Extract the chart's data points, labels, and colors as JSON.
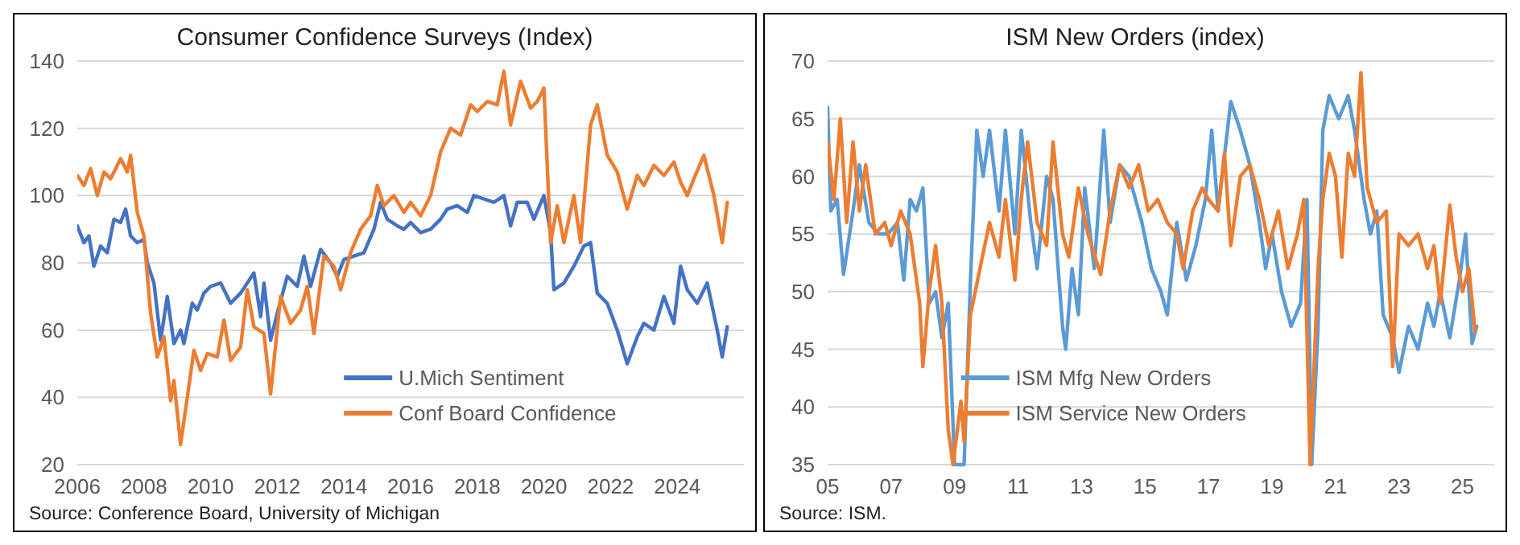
{
  "chart_data": [
    {
      "type": "line",
      "title": "Consumer Confidence Surveys (Index)",
      "xlim": [
        2006,
        2026
      ],
      "xticks": [
        2006,
        2008,
        2010,
        2012,
        2014,
        2016,
        2018,
        2020,
        2022,
        2024
      ],
      "ylim": [
        20,
        140
      ],
      "yticks": [
        20,
        40,
        60,
        80,
        100,
        120,
        140
      ],
      "grid": "y",
      "legend": "bottom",
      "annotations": [
        "Source: Conference Board, University of Michigan"
      ],
      "series": [
        {
          "name": "U.Mich Sentiment",
          "color": "#4472c4",
          "x": [
            2006.0,
            2006.2,
            2006.35,
            2006.5,
            2006.7,
            2006.9,
            2007.1,
            2007.3,
            2007.45,
            2007.6,
            2007.8,
            2008.0,
            2008.1,
            2008.3,
            2008.5,
            2008.7,
            2008.9,
            2009.1,
            2009.2,
            2009.45,
            2009.6,
            2009.8,
            2010.0,
            2010.3,
            2010.6,
            2010.9,
            2011.1,
            2011.3,
            2011.5,
            2011.6,
            2011.8,
            2012.0,
            2012.3,
            2012.6,
            2012.8,
            2013.0,
            2013.3,
            2013.6,
            2013.8,
            2014.0,
            2014.3,
            2014.6,
            2014.9,
            2015.1,
            2015.3,
            2015.6,
            2015.8,
            2016.0,
            2016.3,
            2016.6,
            2016.9,
            2017.1,
            2017.4,
            2017.7,
            2017.9,
            2018.2,
            2018.5,
            2018.8,
            2019.0,
            2019.2,
            2019.5,
            2019.7,
            2020.0,
            2020.2,
            2020.3,
            2020.6,
            2020.9,
            2021.2,
            2021.4,
            2021.6,
            2021.9,
            2022.2,
            2022.5,
            2022.8,
            2023.0,
            2023.3,
            2023.6,
            2023.9,
            2024.1,
            2024.3,
            2024.6,
            2024.9,
            2025.2,
            2025.35,
            2025.5
          ],
          "values": [
            91,
            86,
            88,
            79,
            85,
            83,
            93,
            92,
            96,
            88,
            86,
            87,
            80,
            74,
            57,
            70,
            56,
            60,
            56,
            68,
            66,
            71,
            73,
            74,
            68,
            71,
            74,
            77,
            64,
            74,
            57,
            65,
            76,
            73,
            82,
            73,
            84,
            80,
            76,
            81,
            82,
            83,
            90,
            98,
            93,
            91,
            90,
            92,
            89,
            90,
            93,
            96,
            97,
            95,
            100,
            99,
            98,
            100,
            91,
            98,
            98,
            93,
            100,
            89,
            72,
            74,
            79,
            85,
            86,
            71,
            68,
            60,
            50,
            58,
            62,
            60,
            70,
            62,
            79,
            72,
            68,
            74,
            60,
            52,
            61
          ]
        },
        {
          "name": "Conf Board Confidence",
          "color": "#ed7d31",
          "x": [
            2006.0,
            2006.2,
            2006.4,
            2006.6,
            2006.8,
            2007.0,
            2007.3,
            2007.5,
            2007.6,
            2007.8,
            2008.0,
            2008.2,
            2008.4,
            2008.6,
            2008.8,
            2008.9,
            2009.1,
            2009.3,
            2009.5,
            2009.7,
            2009.9,
            2010.2,
            2010.4,
            2010.6,
            2010.9,
            2011.1,
            2011.3,
            2011.6,
            2011.8,
            2012.1,
            2012.4,
            2012.7,
            2012.9,
            2013.1,
            2013.4,
            2013.7,
            2013.9,
            2014.2,
            2014.5,
            2014.8,
            2015.0,
            2015.2,
            2015.5,
            2015.8,
            2016.0,
            2016.3,
            2016.6,
            2016.9,
            2017.2,
            2017.5,
            2017.8,
            2018.0,
            2018.3,
            2018.6,
            2018.8,
            2019.0,
            2019.3,
            2019.6,
            2019.8,
            2020.0,
            2020.2,
            2020.4,
            2020.6,
            2020.9,
            2021.1,
            2021.4,
            2021.6,
            2021.9,
            2022.2,
            2022.5,
            2022.8,
            2023.0,
            2023.3,
            2023.6,
            2023.9,
            2024.1,
            2024.3,
            2024.5,
            2024.8,
            2025.1,
            2025.35,
            2025.5
          ],
          "values": [
            106,
            103,
            108,
            100,
            107,
            105,
            111,
            107,
            112,
            95,
            88,
            65,
            52,
            58,
            39,
            45,
            26,
            40,
            54,
            48,
            53,
            52,
            63,
            51,
            55,
            72,
            61,
            59,
            41,
            70,
            62,
            66,
            73,
            59,
            82,
            79,
            72,
            83,
            90,
            94,
            103,
            97,
            100,
            95,
            98,
            94,
            100,
            113,
            120,
            118,
            127,
            125,
            128,
            127,
            137,
            121,
            134,
            126,
            128,
            132,
            86,
            97,
            86,
            100,
            86,
            121,
            127,
            112,
            107,
            96,
            106,
            103,
            109,
            106,
            110,
            104,
            100,
            105,
            112,
            100,
            86,
            98
          ]
        }
      ]
    },
    {
      "type": "line",
      "title": "ISM New Orders (index)",
      "xlim": [
        2005,
        2026
      ],
      "xticks": [
        {
          "value": 2005,
          "label": "05"
        },
        {
          "value": 2007,
          "label": "07"
        },
        {
          "value": 2009,
          "label": "09"
        },
        {
          "value": 2011,
          "label": "11"
        },
        {
          "value": 2013,
          "label": "13"
        },
        {
          "value": 2015,
          "label": "15"
        },
        {
          "value": 2017,
          "label": "17"
        },
        {
          "value": 2019,
          "label": "19"
        },
        {
          "value": 2021,
          "label": "21"
        },
        {
          "value": 2023,
          "label": "23"
        },
        {
          "value": 2025,
          "label": "25"
        }
      ],
      "ylim": [
        35,
        70
      ],
      "yticks": [
        35,
        40,
        45,
        50,
        55,
        60,
        65,
        70
      ],
      "grid": "y",
      "legend": "bottom left",
      "annotations": [
        "Source: ISM."
      ],
      "series": [
        {
          "name": "ISM Mfg New Orders",
          "color": "#5b9bd5",
          "x": [
            2005.0,
            2005.1,
            2005.3,
            2005.5,
            2005.8,
            2006.0,
            2006.3,
            2006.6,
            2006.9,
            2007.2,
            2007.4,
            2007.6,
            2007.8,
            2008.0,
            2008.2,
            2008.4,
            2008.6,
            2008.8,
            2009.0,
            2009.3,
            2009.5,
            2009.7,
            2009.9,
            2010.1,
            2010.4,
            2010.6,
            2010.9,
            2011.1,
            2011.4,
            2011.6,
            2011.9,
            2012.1,
            2012.4,
            2012.5,
            2012.7,
            2012.9,
            2013.1,
            2013.4,
            2013.7,
            2013.9,
            2014.2,
            2014.5,
            2014.9,
            2015.2,
            2015.5,
            2015.7,
            2016.0,
            2016.3,
            2016.6,
            2016.9,
            2017.1,
            2017.3,
            2017.7,
            2018.0,
            2018.3,
            2018.6,
            2018.8,
            2019.0,
            2019.3,
            2019.6,
            2019.9,
            2020.1,
            2020.25,
            2020.45,
            2020.6,
            2020.8,
            2021.1,
            2021.4,
            2021.6,
            2021.9,
            2022.1,
            2022.3,
            2022.5,
            2022.8,
            2023.0,
            2023.3,
            2023.6,
            2023.9,
            2024.1,
            2024.3,
            2024.6,
            2024.9,
            2025.1,
            2025.3,
            2025.45
          ],
          "values": [
            66,
            57,
            58,
            51.5,
            57,
            61,
            56,
            55,
            55,
            56,
            51,
            58,
            57,
            59,
            49,
            50,
            46,
            49,
            35,
            35,
            51,
            64,
            60,
            64,
            57,
            64,
            55,
            64,
            56,
            52,
            60,
            58,
            47,
            45,
            52,
            48,
            59,
            52,
            64,
            56,
            61,
            60,
            56,
            52,
            50,
            48,
            56,
            51,
            54,
            58,
            64,
            57,
            66.5,
            64,
            61,
            56,
            52,
            55,
            50,
            47,
            49,
            58,
            35,
            47,
            64,
            67,
            65,
            67,
            64,
            58,
            55,
            57,
            48,
            46,
            43,
            47,
            45,
            49,
            47,
            50,
            46,
            51,
            55,
            45.5,
            47
          ]
        },
        {
          "name": "ISM Service New Orders",
          "color": "#ed7d31",
          "x": [
            2005.0,
            2005.2,
            2005.4,
            2005.6,
            2005.8,
            2006.0,
            2006.2,
            2006.5,
            2006.8,
            2007.0,
            2007.3,
            2007.6,
            2007.9,
            2008.0,
            2008.2,
            2008.4,
            2008.6,
            2008.8,
            2008.95,
            2009.2,
            2009.3,
            2009.5,
            2009.8,
            2010.1,
            2010.4,
            2010.6,
            2010.9,
            2011.1,
            2011.3,
            2011.6,
            2011.9,
            2012.1,
            2012.4,
            2012.6,
            2012.9,
            2013.2,
            2013.6,
            2013.9,
            2014.2,
            2014.5,
            2014.8,
            2015.1,
            2015.4,
            2015.7,
            2016.0,
            2016.2,
            2016.5,
            2016.8,
            2017.0,
            2017.3,
            2017.5,
            2017.7,
            2018.0,
            2018.3,
            2018.6,
            2018.9,
            2019.2,
            2019.5,
            2019.8,
            2020.0,
            2020.2,
            2020.45,
            2020.6,
            2020.8,
            2021.0,
            2021.2,
            2021.4,
            2021.6,
            2021.8,
            2022.0,
            2022.3,
            2022.6,
            2022.8,
            2023.0,
            2023.3,
            2023.6,
            2023.9,
            2024.1,
            2024.3,
            2024.6,
            2024.8,
            2025.0,
            2025.2,
            2025.4
          ],
          "values": [
            63,
            58,
            65,
            56,
            63,
            57,
            61,
            55,
            56,
            54,
            57,
            55,
            49,
            43.5,
            50,
            54,
            49,
            38,
            35,
            40.5,
            37,
            48,
            52,
            56,
            53,
            58,
            51,
            58,
            63,
            56,
            54,
            63,
            55,
            53,
            59,
            55,
            51.5,
            57,
            61,
            59,
            61,
            57,
            58,
            56,
            55,
            52,
            57,
            59,
            58,
            57,
            62,
            54,
            60,
            61,
            58,
            54,
            57,
            52,
            55,
            58,
            35,
            52,
            58,
            62,
            60,
            53,
            62,
            60,
            69,
            59,
            56,
            57,
            43.5,
            55,
            54,
            55,
            52,
            54,
            49,
            57.5,
            53,
            50,
            52,
            46.5
          ]
        }
      ]
    }
  ]
}
